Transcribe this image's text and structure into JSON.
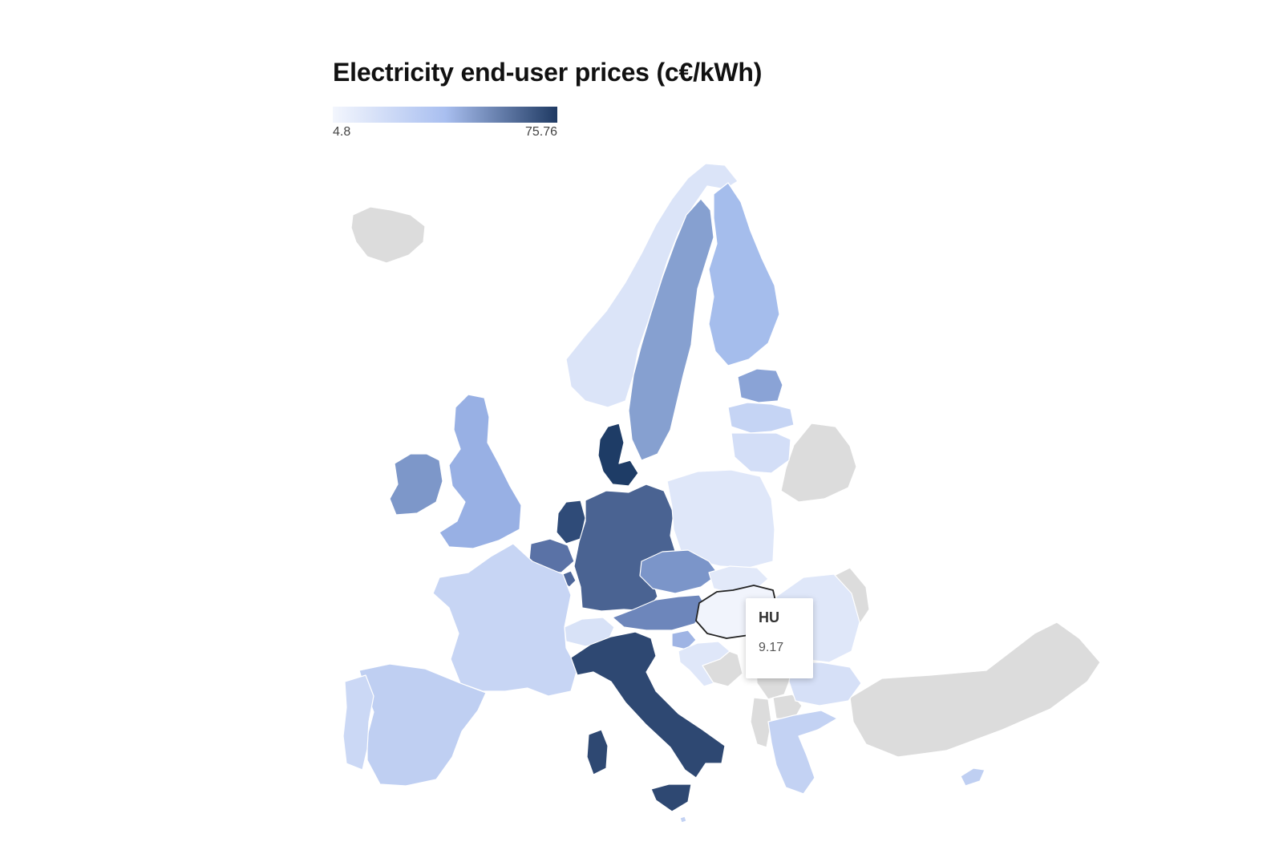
{
  "title": "Electricity end-user prices (c€/kWh)",
  "legend": {
    "min": "4.8",
    "max": "75.76",
    "color_low": "#f3f6fd",
    "color_mid": "#a9bff0",
    "color_high": "#1f3a63"
  },
  "no_data_color": "#dcdcdc",
  "tooltip": {
    "code": "HU",
    "value": "9.17"
  },
  "countries": [
    {
      "code": "NO",
      "color": "#dbe4f8"
    },
    {
      "code": "SE",
      "color": "#86a0d0"
    },
    {
      "code": "FI",
      "color": "#a5bdec"
    },
    {
      "code": "EE",
      "color": "#8aa3d6"
    },
    {
      "code": "LV",
      "color": "#c5d4f4"
    },
    {
      "code": "LT",
      "color": "#d3def7"
    },
    {
      "code": "DK",
      "color": "#1e3c66"
    },
    {
      "code": "UK",
      "color": "#98b0e4"
    },
    {
      "code": "IE",
      "color": "#7d97c9"
    },
    {
      "code": "NL",
      "color": "#2f4b78"
    },
    {
      "code": "BE",
      "color": "#5a72a6"
    },
    {
      "code": "DE",
      "color": "#4a6392"
    },
    {
      "code": "PL",
      "color": "#dfe7f9"
    },
    {
      "code": "CZ",
      "color": "#7b95c9"
    },
    {
      "code": "AT",
      "color": "#6d86bb"
    },
    {
      "code": "SK",
      "color": "#e2e9f9"
    },
    {
      "code": "HU",
      "color": "#f1f4fc"
    },
    {
      "code": "CH",
      "color": "#d8e2f7"
    },
    {
      "code": "FR",
      "color": "#c7d5f4"
    },
    {
      "code": "ES",
      "color": "#bfcff2"
    },
    {
      "code": "PT",
      "color": "#cbd8f5"
    },
    {
      "code": "IT",
      "color": "#2e4872"
    },
    {
      "code": "SI",
      "color": "#9fb4e4"
    },
    {
      "code": "HR",
      "color": "#dfe7f9"
    },
    {
      "code": "RO",
      "color": "#dfe7f9"
    },
    {
      "code": "BG",
      "color": "#d6e0f7"
    },
    {
      "code": "GR",
      "color": "#c3d2f3"
    },
    {
      "code": "CY",
      "color": "#bfcff2"
    },
    {
      "code": "MT",
      "color": "#c3d2f3"
    },
    {
      "code": "LU",
      "color": "#4e679a"
    }
  ],
  "no_data_regions": [
    "IS",
    "BY",
    "UA",
    "TR",
    "RS",
    "BA",
    "MK",
    "AL",
    "MD"
  ]
}
